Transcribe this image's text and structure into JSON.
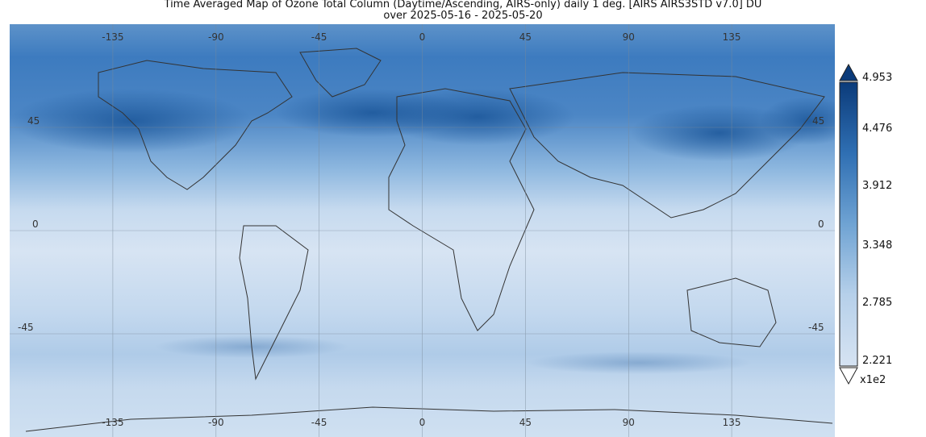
{
  "title": {
    "line1": "Time Averaged Map of Ozone Total Column (Daytime/Ascending, AIRS-only) daily 1 deg. [AIRS AIRS3STD v7.0] DU",
    "line2": "over 2025-05-16 - 2025-05-20"
  },
  "map": {
    "lon_ticks": [
      "-135",
      "-90",
      "-45",
      "0",
      "45",
      "90",
      "135"
    ],
    "lat_ticks": [
      "45",
      "0",
      "-45"
    ],
    "colors": {
      "low": "#d6e3f2",
      "mid": "#a9c8e6",
      "high": "#1f5fa5",
      "max": "#0b3b7a",
      "coast": "#333333"
    }
  },
  "colorbar": {
    "min": 2.221,
    "max": 4.953,
    "tick_labels": [
      "4.953",
      "4.476",
      "3.912",
      "3.348",
      "2.785",
      "2.221"
    ],
    "scale_label": "x1e2"
  }
}
